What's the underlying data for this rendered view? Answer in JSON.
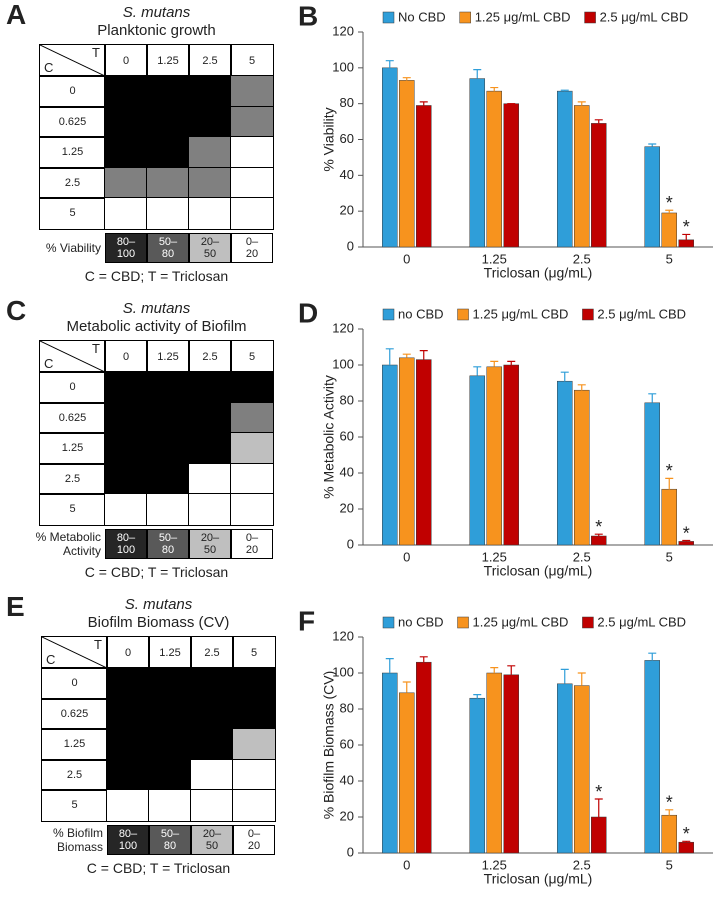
{
  "chart_data": [
    {
      "type": "heatmap",
      "panel": "A",
      "organism": "S. mutans",
      "title": "Planktonic growth",
      "row_header": "C",
      "col_header": "T",
      "columns": [
        "0",
        "1.25",
        "2.5",
        "5"
      ],
      "rows": [
        "0",
        "0.625",
        "1.25",
        "2.5",
        "5"
      ],
      "cell_colors": [
        [
          "#000000",
          "#000000",
          "#000000",
          "#808080"
        ],
        [
          "#000000",
          "#000000",
          "#000000",
          "#808080"
        ],
        [
          "#000000",
          "#000000",
          "#808080",
          "#ffffff"
        ],
        [
          "#808080",
          "#808080",
          "#808080",
          "#ffffff"
        ],
        [
          "#ffffff",
          "#ffffff",
          "#ffffff",
          "#ffffff"
        ]
      ],
      "legend_title": "% Viability",
      "legend": [
        {
          "label": "80–100",
          "color": "#262626"
        },
        {
          "label": "50–80",
          "color": "#595959"
        },
        {
          "label": "20–50",
          "color": "#bfbfbf"
        },
        {
          "label": "0–20",
          "color": "#ffffff"
        }
      ],
      "footnote": "C = CBD; T = Triclosan"
    },
    {
      "type": "bar",
      "panel": "B",
      "categories": [
        "0",
        "1.25",
        "2.5",
        "5"
      ],
      "series": [
        {
          "name": "No CBD",
          "color": "#2f9ed9",
          "values": [
            100,
            94,
            87,
            56
          ],
          "errors": [
            4,
            5,
            0.5,
            1.5
          ]
        },
        {
          "name": "1.25 μg/mL CBD",
          "color": "#f7931e",
          "values": [
            93,
            87,
            79,
            19
          ],
          "errors": [
            1.5,
            2,
            2,
            1.5
          ]
        },
        {
          "name": "2.5 μg/mL CBD",
          "color": "#c00000",
          "values": [
            79,
            80,
            69,
            4
          ],
          "errors": [
            2,
            0,
            2,
            3
          ]
        }
      ],
      "ylim": [
        0,
        120
      ],
      "yticks": [
        0,
        20,
        40,
        60,
        80,
        100,
        120
      ],
      "xlabel": "Triclosan (μg/mL)",
      "ylabel": "% Viability",
      "annotations": [
        {
          "text": "*",
          "series": 1,
          "category": 3
        },
        {
          "text": "*",
          "series": 2,
          "category": 3
        }
      ]
    },
    {
      "type": "heatmap",
      "panel": "C",
      "organism": "S. mutans",
      "title": "Metabolic activity of Biofilm",
      "row_header": "C",
      "col_header": "T",
      "columns": [
        "0",
        "1.25",
        "2.5",
        "5"
      ],
      "rows": [
        "0",
        "0.625",
        "1.25",
        "2.5",
        "5"
      ],
      "cell_colors": [
        [
          "#000000",
          "#000000",
          "#000000",
          "#000000"
        ],
        [
          "#000000",
          "#000000",
          "#000000",
          "#7f7f7f"
        ],
        [
          "#000000",
          "#000000",
          "#000000",
          "#bfbfbf"
        ],
        [
          "#000000",
          "#000000",
          "#ffffff",
          "#ffffff"
        ],
        [
          "#ffffff",
          "#ffffff",
          "#ffffff",
          "#ffffff"
        ]
      ],
      "legend_title": "% Metabolic Activity",
      "legend": [
        {
          "label": "80–100",
          "color": "#262626"
        },
        {
          "label": "50–80",
          "color": "#595959"
        },
        {
          "label": "20–50",
          "color": "#bfbfbf"
        },
        {
          "label": "0–20",
          "color": "#ffffff"
        }
      ],
      "footnote": "C = CBD; T = Triclosan"
    },
    {
      "type": "bar",
      "panel": "D",
      "categories": [
        "0",
        "1.25",
        "2.5",
        "5"
      ],
      "series": [
        {
          "name": "no CBD",
          "color": "#2f9ed9",
          "values": [
            100,
            94,
            91,
            79
          ],
          "errors": [
            9,
            5,
            5,
            5
          ]
        },
        {
          "name": "1.25 μg/mL CBD",
          "color": "#f7931e",
          "values": [
            104,
            99,
            86,
            31
          ],
          "errors": [
            2,
            3,
            3,
            6
          ]
        },
        {
          "name": "2.5 μg/mL CBD",
          "color": "#c00000",
          "values": [
            103,
            100,
            5,
            2
          ],
          "errors": [
            5,
            2,
            1,
            0.5
          ]
        }
      ],
      "ylim": [
        0,
        120
      ],
      "yticks": [
        0,
        20,
        40,
        60,
        80,
        100,
        120
      ],
      "xlabel": "Triclosan (μg/mL)",
      "ylabel": "% Metabolic Activity",
      "annotations": [
        {
          "text": "*",
          "series": 2,
          "category": 2
        },
        {
          "text": "*",
          "series": 1,
          "category": 3
        },
        {
          "text": "*",
          "series": 2,
          "category": 3
        }
      ]
    },
    {
      "type": "heatmap",
      "panel": "E",
      "organism": "S. mutans",
      "title": "Biofilm Biomass (CV)",
      "row_header": "C",
      "col_header": "T",
      "columns": [
        "0",
        "1.25",
        "2.5",
        "5"
      ],
      "rows": [
        "0",
        "0.625",
        "1.25",
        "2.5",
        "5"
      ],
      "cell_colors": [
        [
          "#000000",
          "#000000",
          "#000000",
          "#000000"
        ],
        [
          "#000000",
          "#000000",
          "#000000",
          "#000000"
        ],
        [
          "#000000",
          "#000000",
          "#000000",
          "#bfbfbf"
        ],
        [
          "#000000",
          "#000000",
          "#ffffff",
          "#ffffff"
        ],
        [
          "#ffffff",
          "#ffffff",
          "#ffffff",
          "#ffffff"
        ]
      ],
      "legend_title": "% Biofilm Biomass",
      "legend": [
        {
          "label": "80–100",
          "color": "#262626"
        },
        {
          "label": "50–80",
          "color": "#595959"
        },
        {
          "label": "20–50",
          "color": "#bfbfbf"
        },
        {
          "label": "0–20",
          "color": "#ffffff"
        }
      ],
      "footnote": "C = CBD; T = Triclosan"
    },
    {
      "type": "bar",
      "panel": "F",
      "categories": [
        "0",
        "1.25",
        "2.5",
        "5"
      ],
      "series": [
        {
          "name": "no CBD",
          "color": "#2f9ed9",
          "values": [
            100,
            86,
            94,
            107
          ],
          "errors": [
            8,
            2,
            8,
            4
          ]
        },
        {
          "name": "1.25 μg/mL CBD",
          "color": "#f7931e",
          "values": [
            89,
            100,
            93,
            21
          ],
          "errors": [
            6,
            3,
            7,
            3
          ]
        },
        {
          "name": "2.5 μg/mL CBD",
          "color": "#c00000",
          "values": [
            106,
            99,
            20,
            6
          ],
          "errors": [
            3,
            5,
            10,
            0.5
          ]
        }
      ],
      "ylim": [
        0,
        120
      ],
      "yticks": [
        0,
        20,
        40,
        60,
        80,
        100,
        120
      ],
      "xlabel": "Triclosan (μg/mL)",
      "ylabel": "% Biofilm Biomass (CV)",
      "annotations": [
        {
          "text": "*",
          "series": 2,
          "category": 2
        },
        {
          "text": "*",
          "series": 1,
          "category": 3
        },
        {
          "text": "*",
          "series": 2,
          "category": 3
        }
      ]
    }
  ]
}
